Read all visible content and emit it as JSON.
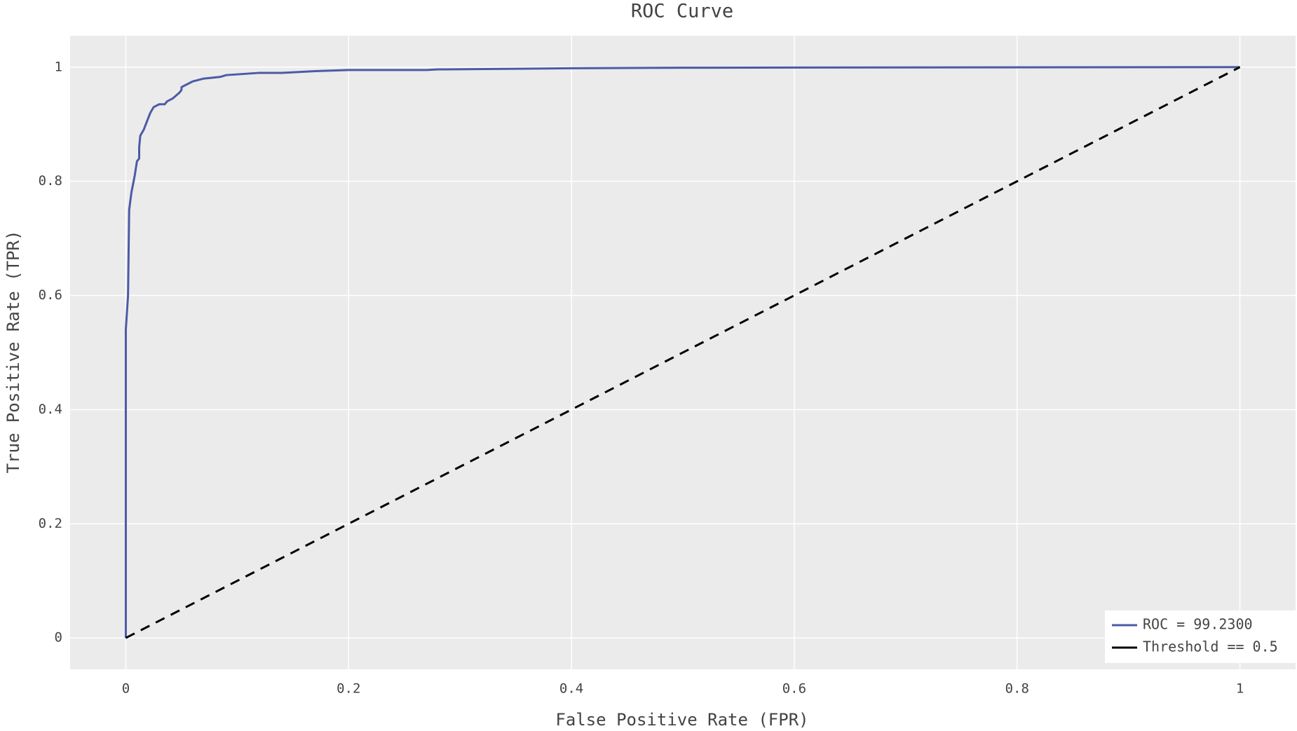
{
  "chart_data": {
    "type": "line",
    "title": "ROC Curve",
    "x_label": "False Positive Rate (FPR)",
    "y_label": "True Positive Rate (TPR)",
    "xlim": [
      -0.05,
      1.05
    ],
    "ylim": [
      -0.055,
      1.055
    ],
    "xticks": [
      0,
      0.2,
      0.4,
      0.6,
      0.8,
      1
    ],
    "yticks": [
      0,
      0.2,
      0.4,
      0.6,
      0.8,
      1
    ],
    "grid": true,
    "legend": "lower right",
    "series": [
      {
        "name": "ROC = 99.2300",
        "color": "#4c5aa6",
        "line_style": "solid",
        "x": [
          0,
          0,
          0.002,
          0.003,
          0.005,
          0.008,
          0.01,
          0.012,
          0.012,
          0.013,
          0.016,
          0.018,
          0.022,
          0.025,
          0.03,
          0.035,
          0.037,
          0.042,
          0.045,
          0.048,
          0.05,
          0.05,
          0.055,
          0.06,
          0.07,
          0.08,
          0.085,
          0.09,
          0.12,
          0.14,
          0.17,
          0.2,
          0.27,
          0.28,
          0.4,
          0.5,
          1
        ],
        "values": [
          0,
          0.54,
          0.6,
          0.75,
          0.78,
          0.81,
          0.835,
          0.84,
          0.86,
          0.88,
          0.89,
          0.9,
          0.92,
          0.93,
          0.935,
          0.935,
          0.94,
          0.945,
          0.95,
          0.955,
          0.96,
          0.965,
          0.97,
          0.975,
          0.98,
          0.982,
          0.983,
          0.986,
          0.99,
          0.99,
          0.993,
          0.995,
          0.995,
          0.996,
          0.998,
          0.999,
          1
        ]
      },
      {
        "name": "Threshold == 0.5",
        "color": "#000000",
        "line_style": "dashed",
        "x": [
          0,
          1
        ],
        "values": [
          0,
          1
        ]
      }
    ]
  }
}
